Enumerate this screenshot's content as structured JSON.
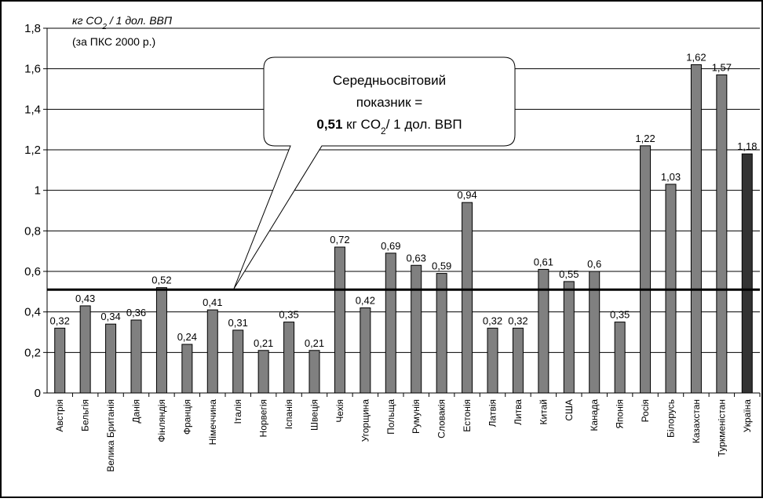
{
  "chart_data": {
    "type": "bar",
    "unit_label": "кг CO",
    "unit_label_sub": "2",
    "unit_label_tail": " / 1 дол. ВВП",
    "subtitle": "(за ПКС 2000 р.)",
    "categories": [
      "Австрія",
      "Бельгія",
      "Велика Британія",
      "Данія",
      "Фінляндія",
      "Франція",
      "Німеччина",
      "Італія",
      "Норвегія",
      "Іспанія",
      "Швеція",
      "Чехія",
      "Угорщина",
      "Польща",
      "Румунія",
      "Словакія",
      "Естонія",
      "Латвія",
      "Литва",
      "Китай",
      "США",
      "Канада",
      "Японія",
      "Росія",
      "Білорусь",
      "Казахстан",
      "Туркменістан",
      "Україна"
    ],
    "values": [
      0.32,
      0.43,
      0.34,
      0.36,
      0.52,
      0.24,
      0.41,
      0.31,
      0.21,
      0.35,
      0.21,
      0.72,
      0.42,
      0.69,
      0.63,
      0.59,
      0.94,
      0.32,
      0.32,
      0.61,
      0.55,
      0.6,
      0.35,
      1.22,
      1.03,
      1.62,
      1.57,
      1.18
    ],
    "data_labels": [
      "0,32",
      "0,43",
      "0,34",
      "0,36",
      "0,52",
      "0,24",
      "0,41",
      "0,31",
      "0,21",
      "0,35",
      "0,21",
      "0,72",
      "0,42",
      "0,69",
      "0,63",
      "0,59",
      "0,94",
      "0,32",
      "0,32",
      "0,61",
      "0,55",
      "0,6",
      "0,35",
      "1,22",
      "1,03",
      "1,62",
      "1,57",
      "1,18"
    ],
    "yticks": [
      "0",
      "0,2",
      "0,4",
      "0,6",
      "0,8",
      "1",
      "1,2",
      "1,4",
      "1,6",
      "1,8"
    ],
    "ylim": [
      0,
      1.8
    ],
    "grid": true,
    "reference_line": {
      "value": 0.51,
      "callout_line1": "Середньосвітовий",
      "callout_line2": "показник =",
      "callout_value": "0,51",
      "callout_unit": " кг CO",
      "callout_unit_sub": "2",
      "callout_unit_tail": "/ 1 дол. ВВП"
    },
    "colors": {
      "bar": "#808080",
      "highlight_bar": "#333333",
      "grid": "#000000",
      "reference": "#000000"
    },
    "highlight_category": "Україна"
  }
}
